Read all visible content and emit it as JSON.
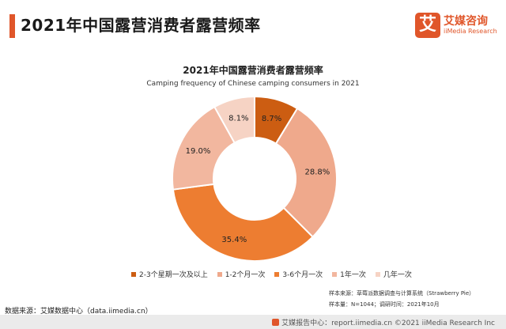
{
  "header": {
    "title": "2021年中国露营消费者露营频率"
  },
  "logo": {
    "badge": "艾",
    "name_cn": "艾媒咨询",
    "name_en": "iiMedia Research"
  },
  "chart_data": {
    "type": "pie",
    "title": "2021年中国露营消费者露营频率",
    "subtitle": "Camping frequency of Chinese camping consumers in 2021",
    "categories": [
      "2-3个星期一次及以上",
      "1-2个月一次",
      "3-6个月一次",
      "1年一次",
      "几年一次"
    ],
    "values": [
      8.7,
      28.8,
      35.4,
      19.0,
      8.1
    ],
    "labels": [
      "8.7%",
      "28.8%",
      "35.4%",
      "19.0%",
      "8.1%"
    ],
    "colors": [
      "#cc5d12",
      "#efa98c",
      "#ed7d31",
      "#f2b79f",
      "#f6d3c4"
    ],
    "donut": true,
    "legend_position": "bottom"
  },
  "notes": {
    "line1": "样本来源：草莓派数据调查与计算系统（Strawberry Pie）",
    "line2": "样本量：N=1044；调研时间：2021年10月"
  },
  "source": "数据来源：艾媒数据中心（data.iimedia.cn）",
  "footer": "艾媒报告中心：report.iimedia.cn  ©2021 iiMedia Research Inc"
}
